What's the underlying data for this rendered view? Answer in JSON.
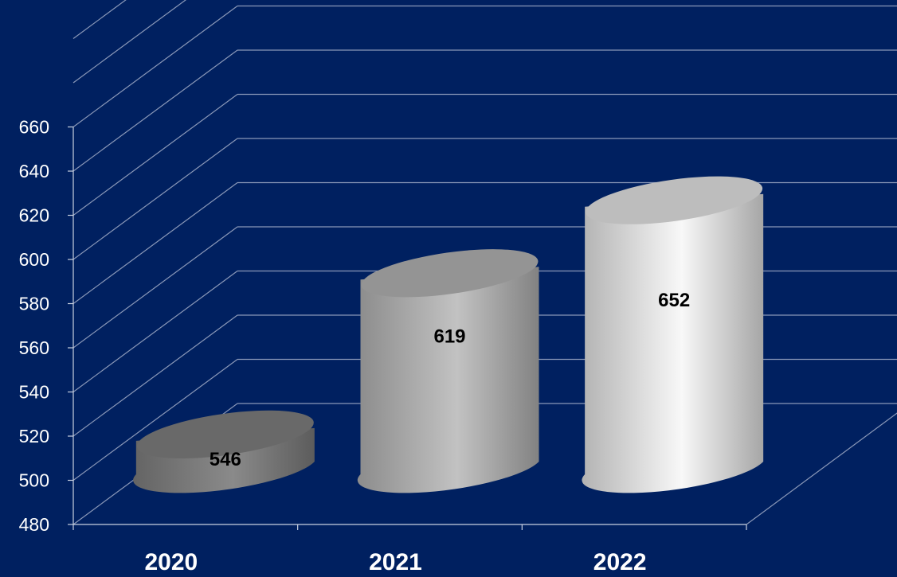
{
  "colors": {
    "background": "#002060",
    "grid": "#8a98b8",
    "axis": "#c8d0e0",
    "tick_text": "#ffffff",
    "data_label": "#000000"
  },
  "chart_data": {
    "type": "bar",
    "style": "3d-cylinder",
    "categories": [
      "2020",
      "2021",
      "2022"
    ],
    "values": [
      546,
      619,
      652
    ],
    "data_labels": [
      "546",
      "619",
      "652"
    ],
    "series_colors": [
      "#808080",
      "#b4b4b4",
      "#e6e6e6"
    ],
    "title": "",
    "xlabel": "",
    "ylabel": "",
    "ylim": [
      480,
      660
    ],
    "yticks": [
      480,
      500,
      520,
      540,
      560,
      580,
      600,
      620,
      640,
      660
    ],
    "grid": true,
    "legend": "none"
  }
}
